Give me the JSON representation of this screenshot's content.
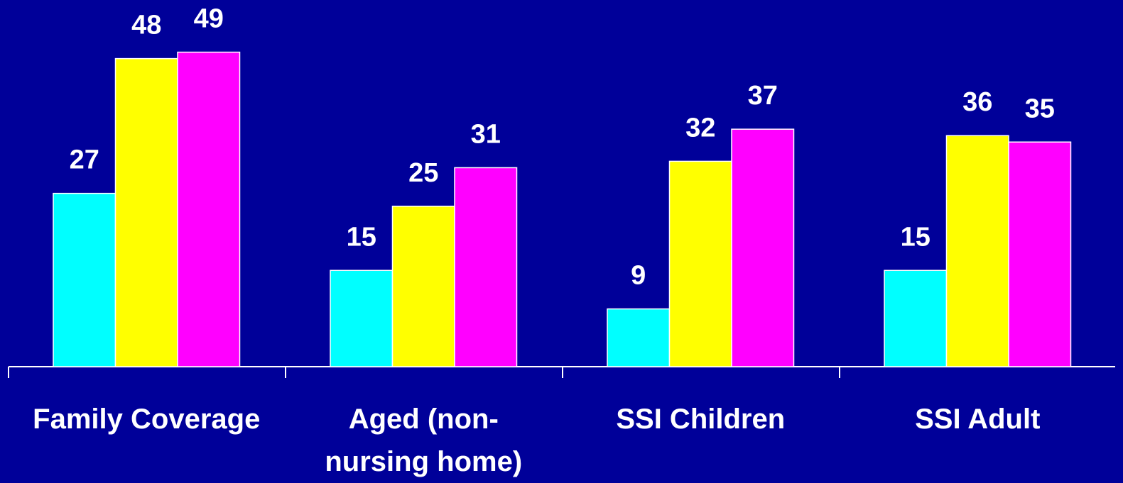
{
  "chart_data": {
    "type": "bar",
    "categories": [
      "Family Coverage",
      "Aged (non-nursing home)",
      "SSI Children",
      "SSI Adult"
    ],
    "series": [
      {
        "color": "#00ffff",
        "values": [
          27,
          15,
          9,
          15
        ]
      },
      {
        "color": "#ffff00",
        "values": [
          48,
          25,
          32,
          36
        ]
      },
      {
        "color": "#ff00ff",
        "values": [
          49,
          31,
          37,
          35
        ]
      }
    ]
  }
}
